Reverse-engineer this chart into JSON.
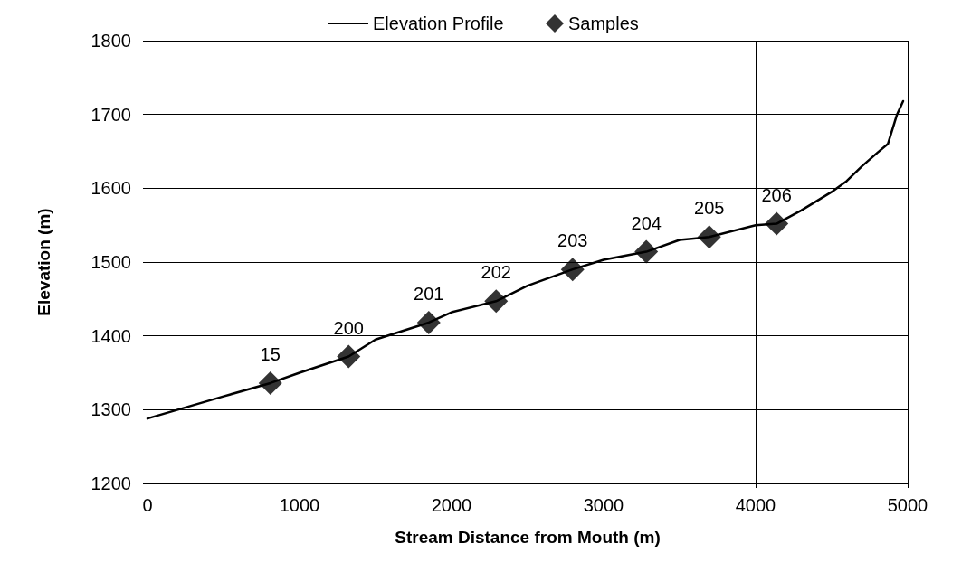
{
  "chart_data": {
    "type": "line",
    "xlabel": "Stream Distance from Mouth (m)",
    "ylabel": "Elevation (m)",
    "xlim": [
      0,
      5000
    ],
    "xticks": [
      0,
      1000,
      2000,
      3000,
      4000,
      5000
    ],
    "ylim": [
      1200,
      1800
    ],
    "yticks": [
      1200,
      1300,
      1400,
      1500,
      1600,
      1700,
      1800
    ],
    "grid": true,
    "legend": "top",
    "series": [
      {
        "name": "Elevation Profile",
        "color": "#000000",
        "marker": "none",
        "line_style": "solid",
        "x": [
          0,
          250,
          500,
          808,
          1000,
          1323,
          1500,
          1850,
          2000,
          2293,
          2500,
          2796,
          3000,
          3281,
          3500,
          3695,
          4000,
          4138,
          4300,
          4500,
          4600,
          4700,
          4800,
          4870,
          4930,
          4970
        ],
        "values": [
          1288,
          1303,
          1318,
          1336,
          1350,
          1372,
          1395,
          1418,
          1432,
          1447,
          1468,
          1490,
          1503,
          1514,
          1530,
          1534,
          1550,
          1552,
          1570,
          1595,
          1610,
          1630,
          1648,
          1660,
          1700,
          1718
        ]
      },
      {
        "name": "Samples",
        "type": "scatter",
        "color": "#000000",
        "marker": "diamond",
        "x": [
          808,
          1323,
          1850,
          2293,
          2796,
          3281,
          3695,
          4138
        ],
        "values": [
          1336,
          1372,
          1418,
          1447,
          1490,
          1514,
          1534,
          1552
        ]
      }
    ],
    "annotations": [
      {
        "text": "15",
        "x": 808,
        "y": 1336
      },
      {
        "text": "200",
        "x": 1323,
        "y": 1372
      },
      {
        "text": "201",
        "x": 1850,
        "y": 1418
      },
      {
        "text": "202",
        "x": 2293,
        "y": 1447
      },
      {
        "text": "203",
        "x": 2796,
        "y": 1490
      },
      {
        "text": "204",
        "x": 3281,
        "y": 1514
      },
      {
        "text": "205",
        "x": 3695,
        "y": 1534
      },
      {
        "text": "206",
        "x": 4138,
        "y": 1552
      }
    ]
  }
}
